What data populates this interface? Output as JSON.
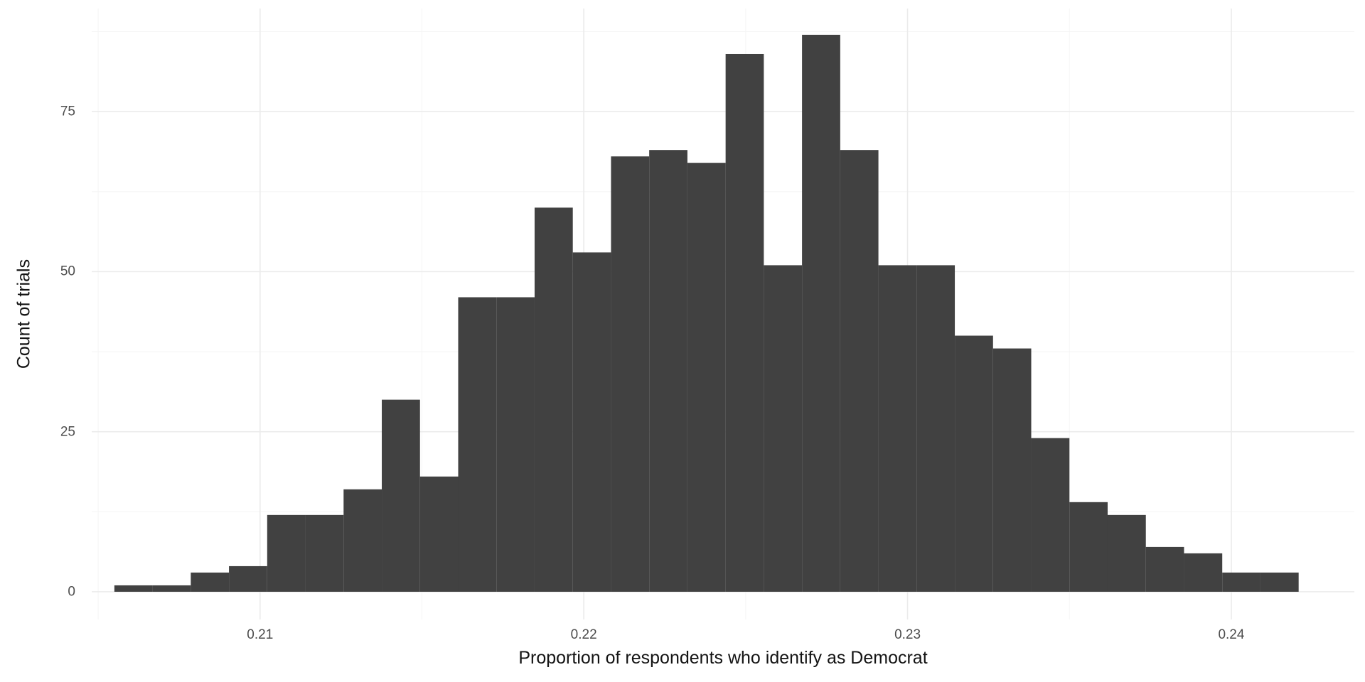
{
  "chart_data": {
    "type": "bar",
    "subtype": "histogram",
    "title": "",
    "xlabel": "Proportion of respondents who identify as Democrat",
    "ylabel": "Count of trials",
    "bar_color": "#414141",
    "background_color": "#ffffff",
    "grid_major_color": "#ebebeb",
    "grid_minor_color": "#f5f5f5",
    "grid": "on",
    "legend": "none",
    "xlim": [
      0.2048,
      0.2438
    ],
    "ylim": [
      -4.33,
      91.1
    ],
    "x_ticks": [
      0.21,
      0.22,
      0.23,
      0.24
    ],
    "x_tick_labels": [
      "0.21",
      "0.22",
      "0.23",
      "0.24"
    ],
    "y_ticks": [
      0,
      25,
      50,
      75
    ],
    "y_tick_labels": [
      "0",
      "25",
      "50",
      "75"
    ],
    "x_minor_ticks": [
      0.205,
      0.215,
      0.225,
      0.235
    ],
    "y_minor_ticks": [
      12.5,
      37.5,
      62.5,
      87.5
    ],
    "bin_start": 0.2055,
    "bin_width": 0.00118,
    "counts": [
      1,
      1,
      3,
      4,
      12,
      12,
      16,
      30,
      18,
      46,
      46,
      60,
      53,
      68,
      69,
      67,
      84,
      51,
      87,
      69,
      51,
      51,
      40,
      38,
      24,
      14,
      12,
      7,
      6,
      3,
      3
    ]
  }
}
